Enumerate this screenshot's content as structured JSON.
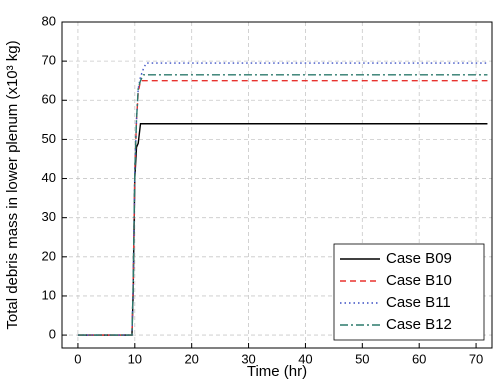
{
  "chart_data": {
    "type": "line",
    "x_label": "Time (hr)",
    "y_label": "Total debris mass in lower plenum (x10³ kg)",
    "x": [
      0,
      9.5,
      9.7,
      10,
      10.3,
      10.6,
      11,
      11.5,
      12,
      72
    ],
    "series": [
      {
        "name": "Case B09",
        "color": "#000000",
        "dash": "solid",
        "values": [
          0,
          0,
          10,
          40,
          48,
          49,
          54,
          54,
          54,
          54
        ]
      },
      {
        "name": "Case B10",
        "color": "#e8322e",
        "dash": "dashed",
        "values": [
          0,
          0,
          12,
          42,
          55,
          62,
          65,
          65,
          65,
          65
        ]
      },
      {
        "name": "Case B11",
        "color": "#3a4fc4",
        "dash": "dotted",
        "values": [
          0,
          0,
          12,
          42,
          55,
          63,
          66,
          68,
          69.5,
          69.5
        ]
      },
      {
        "name": "Case B12",
        "color": "#2c7a6c",
        "dash": "dashdot",
        "values": [
          0,
          0,
          12,
          42,
          55,
          63,
          65,
          66.5,
          66.5,
          66.5
        ]
      }
    ],
    "xlim": [
      -2.8,
      72.8
    ],
    "xticks": [
      0,
      10,
      20,
      30,
      40,
      50,
      60,
      70
    ],
    "ylim": [
      -3.3,
      80
    ],
    "yticks": [
      0,
      10,
      20,
      30,
      40,
      50,
      60,
      70,
      80
    ],
    "grid": true,
    "legend": "lower-right"
  }
}
